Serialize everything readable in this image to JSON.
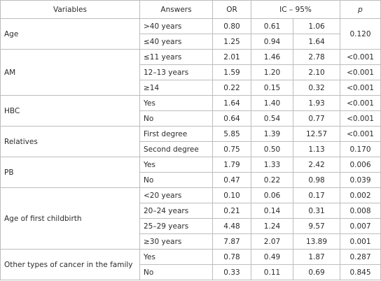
{
  "table": {
    "header": [
      "Variables",
      "Answers",
      "OR",
      "IC – 95%",
      "p"
    ],
    "groups": [
      {
        "variable": "Age",
        "p": "0.120",
        "rows": [
          {
            "answer": ">40 years",
            "or": "0.80",
            "ic_low": "0.61",
            "ic_high": "1.06"
          },
          {
            "answer": "≤40 years",
            "or": "1.25",
            "ic_low": "0.94",
            "ic_high": "1.64"
          }
        ]
      },
      {
        "variable": "AM",
        "rows": [
          {
            "answer": "≤11 years",
            "or": "2.01",
            "ic_low": "1.46",
            "ic_high": "2.78",
            "p": "<0.001"
          },
          {
            "answer": "12–13 years",
            "or": "1.59",
            "ic_low": "1.20",
            "ic_high": "2.10",
            "p": "<0.001"
          },
          {
            "answer": "≥14",
            "or": "0.22",
            "ic_low": "0.15",
            "ic_high": "0.32",
            "p": "<0.001"
          }
        ]
      },
      {
        "variable": "HBC",
        "rows": [
          {
            "answer": "Yes",
            "or": "1.64",
            "ic_low": "1.40",
            "ic_high": "1.93",
            "p": "<0.001"
          },
          {
            "answer": "No",
            "or": "0.64",
            "ic_low": "0.54",
            "ic_high": "0.77",
            "p": "<0.001"
          }
        ]
      },
      {
        "variable": "Relatives",
        "rows": [
          {
            "answer": "First degree",
            "or": "5.85",
            "ic_low": "1.39",
            "ic_high": "12.57",
            "p": "<0.001"
          },
          {
            "answer": "Second degree",
            "or": "0.75",
            "ic_low": "0.50",
            "ic_high": "1.13",
            "p": "0.170"
          }
        ]
      },
      {
        "variable": "PB",
        "rows": [
          {
            "answer": "Yes",
            "or": "1.79",
            "ic_low": "1.33",
            "ic_high": "2.42",
            "p": "0.006"
          },
          {
            "answer": "No",
            "or": "0.47",
            "ic_low": "0.22",
            "ic_high": "0.98",
            "p": "0.039"
          }
        ]
      },
      {
        "variable": "Age of first childbirth",
        "rows": [
          {
            "answer": "<20 years",
            "or": "0.10",
            "ic_low": "0.06",
            "ic_high": "0.17",
            "p": "0.002"
          },
          {
            "answer": "20–24 years",
            "or": "0.21",
            "ic_low": "0.14",
            "ic_high": "0.31",
            "p": "0.008"
          },
          {
            "answer": "25–29 years",
            "or": "4.48",
            "ic_low": "1.24",
            "ic_high": "9.57",
            "p": "0.007"
          },
          {
            "answer": "≥30 years",
            "or": "7.87",
            "ic_low": "2.07",
            "ic_high": "13.89",
            "p": "0.001"
          }
        ]
      },
      {
        "variable": "Other types of cancer in the family",
        "rows": [
          {
            "answer": "Yes",
            "or": "0.78",
            "ic_low": "0.49",
            "ic_high": "1.87",
            "p": "0.287"
          },
          {
            "answer": "No",
            "or": "0.33",
            "ic_low": "0.11",
            "ic_high": "0.69",
            "p": "0.845"
          }
        ]
      }
    ]
  }
}
